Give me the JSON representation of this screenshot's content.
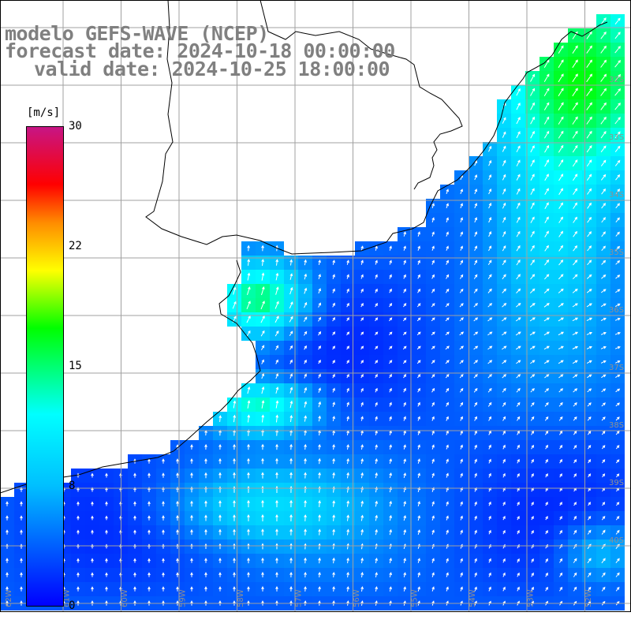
{
  "title": {
    "line1": "modelo GEFS-WAVE (NCEP)",
    "line2": "forecast date: 2024-10-18 00:00:00",
    "line3": "valid date: 2024-10-25 18:00:00"
  },
  "colorbar": {
    "units": "[m/s]",
    "ticks": [
      "30",
      "22",
      "15",
      "8",
      "0"
    ],
    "range": [
      0,
      30
    ],
    "stops": [
      {
        "value": 0,
        "color": "#0000ff"
      },
      {
        "value": 7.5,
        "color": "#00bfff"
      },
      {
        "value": 12,
        "color": "#00ffff"
      },
      {
        "value": 17.4,
        "color": "#00ff00"
      },
      {
        "value": 21,
        "color": "#ffff00"
      },
      {
        "value": 24,
        "color": "#ff8c00"
      },
      {
        "value": 26.4,
        "color": "#ff0000"
      },
      {
        "value": 30,
        "color": "#c71585"
      }
    ]
  },
  "map": {
    "variable": "wind speed",
    "field_description": "wind speed shaded cells with white direction arrows over ocean, land left blank",
    "grid_color": "#a0a0a0",
    "coast_color": "#000000",
    "land_color": "#ffffff",
    "arrow_color": "#ffffff",
    "right_lat_labels": [
      "32S",
      "33S",
      "34S",
      "35S",
      "36S",
      "37S",
      "38S",
      "39S",
      "40S"
    ],
    "bottom_lon_labels": [
      "62W",
      "61W",
      "60W",
      "59W",
      "58W",
      "57W",
      "56W",
      "55W",
      "54W",
      "53W",
      "52W"
    ]
  }
}
